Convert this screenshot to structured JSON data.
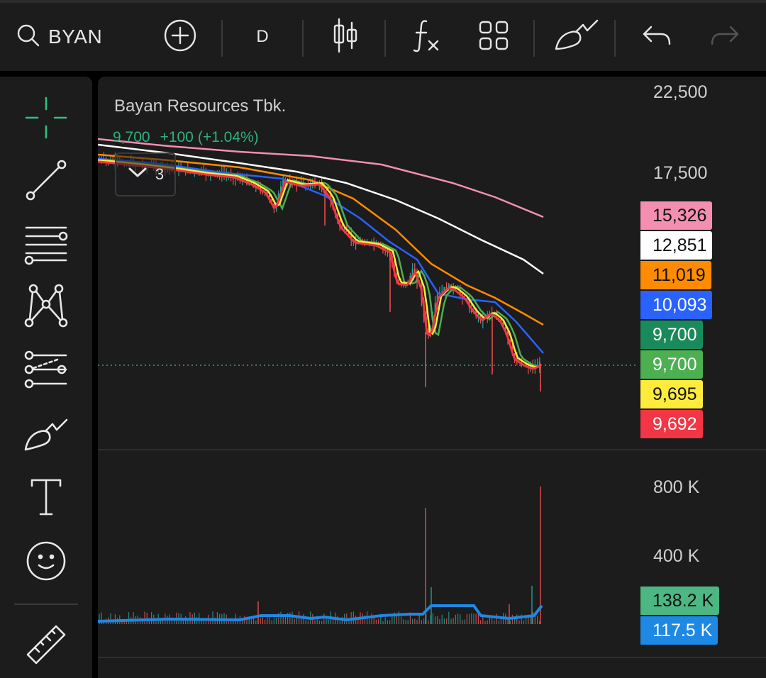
{
  "toolbar": {
    "symbol": "BYAN",
    "timeframe": "D",
    "icons": [
      "search-icon",
      "add-circle-icon",
      "candlestick-icon",
      "function-icon",
      "layout-grid-icon",
      "brush-icon",
      "undo-icon",
      "redo-icon"
    ]
  },
  "sidebar": {
    "tools": [
      "crosshair-icon",
      "trend-line-icon",
      "horizontal-lines-icon",
      "pattern-icon",
      "prediction-icon",
      "brush-icon",
      "text-icon",
      "emoji-icon",
      "ruler-icon"
    ]
  },
  "chart": {
    "stock_name": "Bayan Resources Tbk.",
    "last_price": "9,700",
    "change": "+100",
    "change_pct": "(+1.04%)",
    "indicators_count": "3",
    "price_axis": [
      "22,500",
      "17,500"
    ],
    "volume_axis": [
      "800 K",
      "400 K"
    ],
    "price_badges": [
      {
        "label": "15,326",
        "bg": "#f48fb1",
        "color": "#111111"
      },
      {
        "label": "12,851",
        "bg": "#ffffff",
        "color": "#111111"
      },
      {
        "label": "11,019",
        "bg": "#ff8c00",
        "color": "#111111"
      },
      {
        "label": "10,093",
        "bg": "#2962ff",
        "color": "#ffffff"
      },
      {
        "label": "9,700",
        "bg": "#1b8a5a",
        "color": "#ffffff"
      },
      {
        "label": "9,700",
        "bg": "#4caf50",
        "color": "#ffffff"
      },
      {
        "label": "9,695",
        "bg": "#ffeb3b",
        "color": "#111111"
      },
      {
        "label": "9,692",
        "bg": "#f23645",
        "color": "#ffffff"
      }
    ],
    "volume_badges": [
      {
        "label": "138.2 K",
        "bg": "#4cb782",
        "color": "#111111"
      },
      {
        "label": "117.5 K",
        "bg": "#1e88e5",
        "color": "#ffffff"
      }
    ],
    "colors": {
      "up": "#26a69a",
      "down": "#ef5350",
      "ma_pink": "#f48fb1",
      "ma_white": "#ffffff",
      "ma_orange": "#ff8c00",
      "ma_blue": "#2962ff",
      "ma_green": "#4caf50",
      "ma_yellow": "#ffeb3b",
      "ma_red": "#f23645",
      "vol_ma": "#1e88e5"
    }
  }
}
